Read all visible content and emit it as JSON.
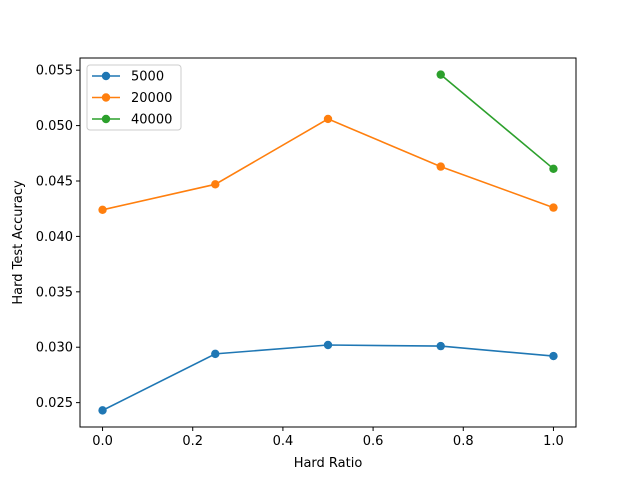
{
  "chart_data": {
    "type": "line",
    "title": "",
    "xlabel": "Hard Ratio",
    "ylabel": "Hard Test Accuracy",
    "xlim": [
      -0.05,
      1.05
    ],
    "ylim": [
      0.0228,
      0.0561
    ],
    "xticks": [
      0.0,
      0.2,
      0.4,
      0.6,
      0.8,
      1.0
    ],
    "xtick_labels": [
      "0.0",
      "0.2",
      "0.4",
      "0.6",
      "0.8",
      "1.0"
    ],
    "yticks": [
      0.025,
      0.03,
      0.035,
      0.04,
      0.045,
      0.05,
      0.055
    ],
    "ytick_labels": [
      "0.025",
      "0.030",
      "0.035",
      "0.040",
      "0.045",
      "0.050",
      "0.055"
    ],
    "grid": false,
    "legend_position": "upper-left",
    "series": [
      {
        "name": "5000",
        "color": "#1f77b4",
        "marker": "circle",
        "x": [
          0.0,
          0.25,
          0.5,
          0.75,
          1.0
        ],
        "y": [
          0.0243,
          0.0294,
          0.0302,
          0.0301,
          0.0292
        ]
      },
      {
        "name": "20000",
        "color": "#ff7f0e",
        "marker": "circle",
        "x": [
          0.0,
          0.25,
          0.5,
          0.75,
          1.0
        ],
        "y": [
          0.0424,
          0.0447,
          0.0506,
          0.0463,
          0.0426
        ]
      },
      {
        "name": "40000",
        "color": "#2ca02c",
        "marker": "circle",
        "x": [
          0.75,
          1.0
        ],
        "y": [
          0.0546,
          0.0461
        ]
      }
    ]
  }
}
